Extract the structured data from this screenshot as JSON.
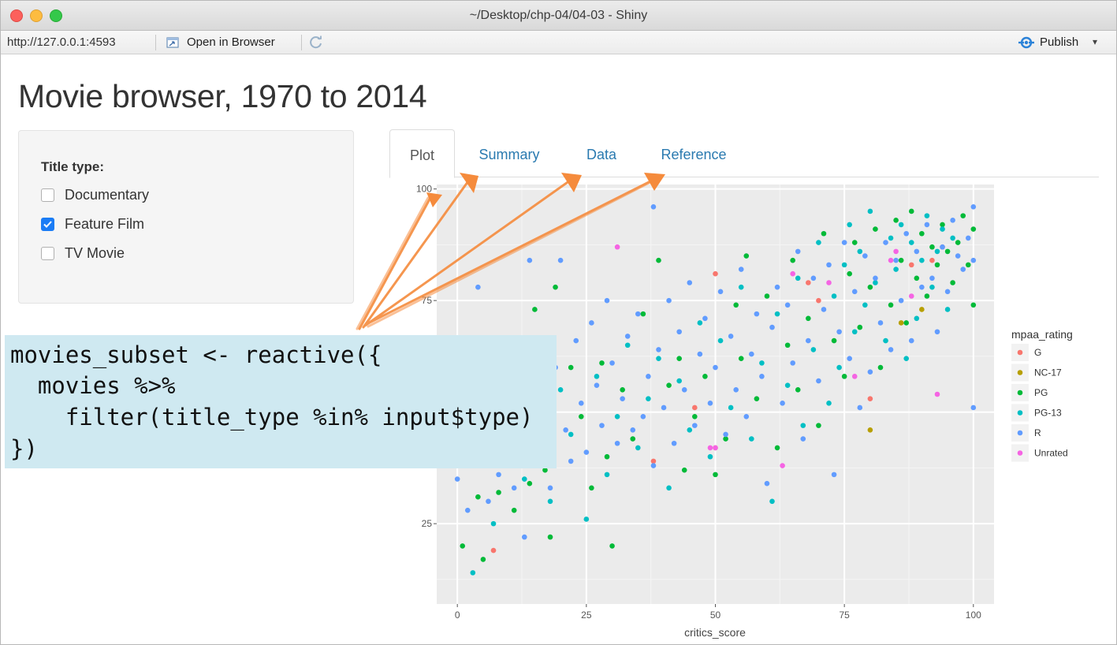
{
  "window": {
    "title": "~/Desktop/chp-04/04-03 - Shiny"
  },
  "toolbar": {
    "url": "http://127.0.0.1:4593",
    "open_in_browser": "Open in Browser",
    "publish": "Publish"
  },
  "app": {
    "title": "Movie browser, 1970 to 2014",
    "sidebar": {
      "label": "Title type:",
      "options": [
        {
          "label": "Documentary",
          "checked": false
        },
        {
          "label": "Feature Film",
          "checked": true
        },
        {
          "label": "TV Movie",
          "checked": false
        }
      ]
    },
    "tabs": [
      "Plot",
      "Summary",
      "Data",
      "Reference"
    ],
    "active_tab": "Plot"
  },
  "code": {
    "lines": [
      "movies_subset <- reactive({",
      "  movies %>%",
      "    filter(title_type %in% input$type)",
      "})"
    ]
  },
  "colors": {
    "G": "#f8766d",
    "NC-17": "#b79f00",
    "PG": "#00ba38",
    "PG-13": "#00bfc4",
    "R": "#619cff",
    "Unrated": "#f564e3",
    "annotation_arrow": "#f58b3c",
    "code_background": "#cfe9f1",
    "tab_link": "#2a7ab0",
    "checkbox_checked": "#1a7cf5"
  },
  "chart_data": {
    "type": "scatter",
    "xlabel": "critics_score",
    "ylabel": "",
    "xlim": [
      -4,
      104
    ],
    "ylim": [
      7,
      101
    ],
    "x_ticks": [
      0,
      25,
      50,
      75,
      100
    ],
    "y_ticks": [
      25,
      75,
      100
    ],
    "grid": true,
    "legend": {
      "title": "mpaa_rating",
      "position": "right",
      "entries": [
        "G",
        "NC-17",
        "PG",
        "PG-13",
        "R",
        "Unrated"
      ]
    },
    "series": [
      {
        "name": "G",
        "points": [
          [
            7,
            19
          ],
          [
            38,
            39
          ],
          [
            46,
            51
          ],
          [
            50,
            42
          ],
          [
            50,
            81
          ],
          [
            70,
            75
          ],
          [
            80,
            53
          ],
          [
            88,
            83
          ],
          [
            92,
            84
          ],
          [
            94,
            87
          ],
          [
            68,
            79
          ]
        ]
      },
      {
        "name": "NC-17",
        "points": [
          [
            80,
            46
          ],
          [
            86,
            70
          ],
          [
            90,
            73
          ]
        ]
      },
      {
        "name": "PG",
        "points": [
          [
            1,
            20
          ],
          [
            2,
            42
          ],
          [
            4,
            31
          ],
          [
            5,
            17
          ],
          [
            8,
            32
          ],
          [
            11,
            28
          ],
          [
            14,
            34
          ],
          [
            15,
            73
          ],
          [
            17,
            37
          ],
          [
            18,
            22
          ],
          [
            19,
            78
          ],
          [
            22,
            60
          ],
          [
            24,
            49
          ],
          [
            26,
            33
          ],
          [
            28,
            61
          ],
          [
            29,
            40
          ],
          [
            30,
            20
          ],
          [
            32,
            55
          ],
          [
            34,
            44
          ],
          [
            36,
            72
          ],
          [
            39,
            84
          ],
          [
            41,
            56
          ],
          [
            43,
            62
          ],
          [
            44,
            37
          ],
          [
            46,
            49
          ],
          [
            48,
            58
          ],
          [
            50,
            36
          ],
          [
            52,
            44
          ],
          [
            54,
            74
          ],
          [
            55,
            62
          ],
          [
            56,
            85
          ],
          [
            58,
            53
          ],
          [
            60,
            76
          ],
          [
            62,
            42
          ],
          [
            64,
            65
          ],
          [
            65,
            84
          ],
          [
            66,
            55
          ],
          [
            68,
            71
          ],
          [
            70,
            47
          ],
          [
            71,
            90
          ],
          [
            73,
            66
          ],
          [
            75,
            58
          ],
          [
            76,
            81
          ],
          [
            77,
            88
          ],
          [
            78,
            69
          ],
          [
            80,
            78
          ],
          [
            81,
            91
          ],
          [
            82,
            60
          ],
          [
            84,
            74
          ],
          [
            85,
            93
          ],
          [
            86,
            84
          ],
          [
            87,
            70
          ],
          [
            88,
            95
          ],
          [
            89,
            80
          ],
          [
            90,
            90
          ],
          [
            91,
            76
          ],
          [
            92,
            87
          ],
          [
            93,
            83
          ],
          [
            94,
            92
          ],
          [
            95,
            86
          ],
          [
            96,
            79
          ],
          [
            97,
            88
          ],
          [
            98,
            94
          ],
          [
            99,
            83
          ],
          [
            100,
            74
          ],
          [
            100,
            91
          ]
        ]
      },
      {
        "name": "PG-13",
        "points": [
          [
            1,
            46
          ],
          [
            3,
            14
          ],
          [
            5,
            38
          ],
          [
            7,
            25
          ],
          [
            9,
            52
          ],
          [
            11,
            60
          ],
          [
            13,
            35
          ],
          [
            16,
            43
          ],
          [
            18,
            30
          ],
          [
            20,
            55
          ],
          [
            22,
            45
          ],
          [
            25,
            26
          ],
          [
            27,
            58
          ],
          [
            29,
            36
          ],
          [
            31,
            49
          ],
          [
            33,
            65
          ],
          [
            35,
            42
          ],
          [
            37,
            53
          ],
          [
            39,
            62
          ],
          [
            41,
            33
          ],
          [
            43,
            57
          ],
          [
            45,
            46
          ],
          [
            47,
            70
          ],
          [
            49,
            40
          ],
          [
            51,
            66
          ],
          [
            53,
            51
          ],
          [
            55,
            78
          ],
          [
            57,
            44
          ],
          [
            59,
            61
          ],
          [
            61,
            30
          ],
          [
            62,
            72
          ],
          [
            64,
            56
          ],
          [
            66,
            80
          ],
          [
            67,
            47
          ],
          [
            69,
            64
          ],
          [
            70,
            88
          ],
          [
            72,
            52
          ],
          [
            73,
            76
          ],
          [
            74,
            60
          ],
          [
            75,
            83
          ],
          [
            76,
            92
          ],
          [
            77,
            68
          ],
          [
            78,
            86
          ],
          [
            79,
            74
          ],
          [
            80,
            95
          ],
          [
            81,
            79
          ],
          [
            83,
            66
          ],
          [
            84,
            89
          ],
          [
            85,
            82
          ],
          [
            86,
            92
          ],
          [
            87,
            62
          ],
          [
            88,
            88
          ],
          [
            89,
            71
          ],
          [
            90,
            84
          ],
          [
            91,
            94
          ],
          [
            92,
            78
          ],
          [
            93,
            86
          ],
          [
            94,
            91
          ],
          [
            95,
            73
          ],
          [
            96,
            89
          ]
        ]
      },
      {
        "name": "R",
        "points": [
          [
            0,
            35
          ],
          [
            1,
            48
          ],
          [
            2,
            28
          ],
          [
            3,
            55
          ],
          [
            4,
            45
          ],
          [
            4,
            78
          ],
          [
            5,
            40
          ],
          [
            6,
            30
          ],
          [
            7,
            52
          ],
          [
            8,
            36
          ],
          [
            9,
            41
          ],
          [
            10,
            48
          ],
          [
            11,
            33
          ],
          [
            12,
            57
          ],
          [
            13,
            22
          ],
          [
            14,
            44
          ],
          [
            14,
            84
          ],
          [
            15,
            62
          ],
          [
            16,
            38
          ],
          [
            17,
            51
          ],
          [
            18,
            33
          ],
          [
            19,
            60
          ],
          [
            20,
            84
          ],
          [
            21,
            46
          ],
          [
            22,
            39
          ],
          [
            23,
            66
          ],
          [
            24,
            52
          ],
          [
            25,
            41
          ],
          [
            26,
            70
          ],
          [
            27,
            56
          ],
          [
            28,
            47
          ],
          [
            29,
            75
          ],
          [
            30,
            61
          ],
          [
            31,
            43
          ],
          [
            32,
            53
          ],
          [
            33,
            67
          ],
          [
            34,
            46
          ],
          [
            35,
            72
          ],
          [
            36,
            49
          ],
          [
            37,
            58
          ],
          [
            38,
            38
          ],
          [
            38,
            96
          ],
          [
            39,
            64
          ],
          [
            40,
            51
          ],
          [
            41,
            75
          ],
          [
            42,
            43
          ],
          [
            43,
            68
          ],
          [
            44,
            55
          ],
          [
            45,
            79
          ],
          [
            46,
            47
          ],
          [
            47,
            63
          ],
          [
            48,
            71
          ],
          [
            49,
            52
          ],
          [
            50,
            60
          ],
          [
            51,
            77
          ],
          [
            52,
            45
          ],
          [
            53,
            67
          ],
          [
            54,
            55
          ],
          [
            55,
            82
          ],
          [
            56,
            49
          ],
          [
            57,
            63
          ],
          [
            58,
            72
          ],
          [
            59,
            58
          ],
          [
            60,
            34
          ],
          [
            61,
            69
          ],
          [
            62,
            78
          ],
          [
            63,
            52
          ],
          [
            64,
            74
          ],
          [
            65,
            61
          ],
          [
            66,
            86
          ],
          [
            67,
            44
          ],
          [
            68,
            66
          ],
          [
            69,
            80
          ],
          [
            70,
            57
          ],
          [
            71,
            73
          ],
          [
            72,
            83
          ],
          [
            73,
            36
          ],
          [
            74,
            68
          ],
          [
            75,
            88
          ],
          [
            76,
            62
          ],
          [
            77,
            77
          ],
          [
            78,
            51
          ],
          [
            79,
            85
          ],
          [
            80,
            59
          ],
          [
            81,
            80
          ],
          [
            82,
            70
          ],
          [
            83,
            88
          ],
          [
            84,
            64
          ],
          [
            85,
            84
          ],
          [
            86,
            75
          ],
          [
            87,
            90
          ],
          [
            88,
            66
          ],
          [
            89,
            86
          ],
          [
            90,
            78
          ],
          [
            91,
            92
          ],
          [
            92,
            80
          ],
          [
            93,
            68
          ],
          [
            94,
            87
          ],
          [
            95,
            77
          ],
          [
            96,
            93
          ],
          [
            97,
            85
          ],
          [
            98,
            82
          ],
          [
            99,
            89
          ],
          [
            100,
            84
          ],
          [
            100,
            51
          ],
          [
            100,
            96
          ]
        ]
      },
      {
        "name": "Unrated",
        "points": [
          [
            31,
            87
          ],
          [
            49,
            42
          ],
          [
            50,
            42
          ],
          [
            63,
            38
          ],
          [
            65,
            81
          ],
          [
            72,
            79
          ],
          [
            77,
            58
          ],
          [
            84,
            84
          ],
          [
            85,
            86
          ],
          [
            88,
            76
          ],
          [
            93,
            54
          ]
        ]
      }
    ]
  }
}
